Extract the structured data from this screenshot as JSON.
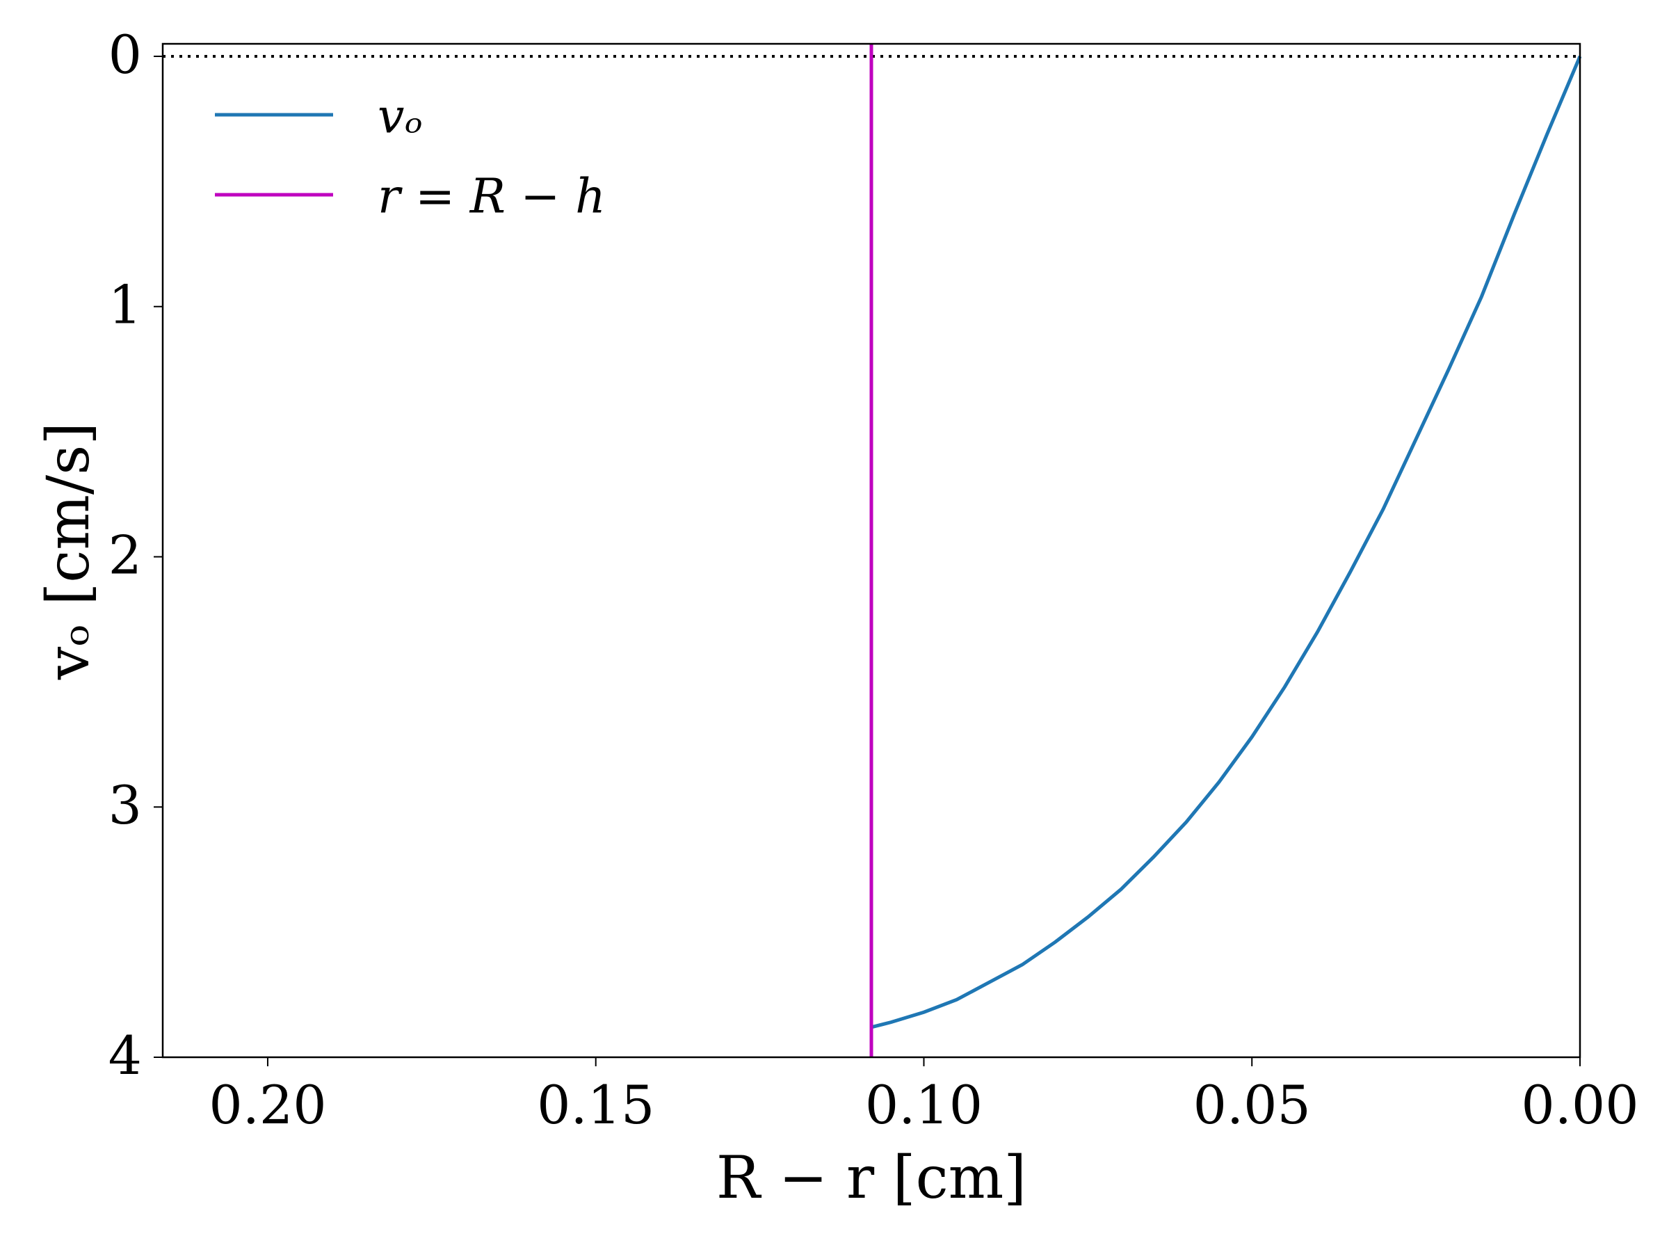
{
  "chart_data": {
    "type": "line",
    "xlabel": "R − r [cm]",
    "ylabel": "vₒ [cm/s]",
    "xlim": [
      0.216,
      0
    ],
    "ylim": [
      4,
      -0.05
    ],
    "xticks": [
      {
        "value": 0.2,
        "label": "0.20"
      },
      {
        "value": 0.15,
        "label": "0.15"
      },
      {
        "value": 0.1,
        "label": "0.10"
      },
      {
        "value": 0.05,
        "label": "0.05"
      },
      {
        "value": 0,
        "label": "0.00"
      }
    ],
    "yticks": [
      0,
      1,
      2,
      3,
      4
    ],
    "legend": "upper left",
    "series": [
      {
        "name": "vₒ",
        "color": "#1f77b4",
        "x": [
          0,
          0.005,
          0.01,
          0.015,
          0.02,
          0.025,
          0.03,
          0.035,
          0.04,
          0.045,
          0.05,
          0.055,
          0.06,
          0.065,
          0.07,
          0.075,
          0.08,
          0.085,
          0.09,
          0.095,
          0.1,
          0.105,
          0.108
        ],
        "values": [
          0,
          0.31,
          0.63,
          0.96,
          1.25,
          1.53,
          1.81,
          2.06,
          2.3,
          2.52,
          2.72,
          2.9,
          3.06,
          3.2,
          3.33,
          3.44,
          3.54,
          3.63,
          3.7,
          3.77,
          3.82,
          3.86,
          3.88
        ]
      }
    ],
    "vlines": [
      {
        "name": "r = R − h",
        "color": "#bf00bf",
        "x": 0.108
      }
    ],
    "hline": {
      "y": 0,
      "color": "#000000",
      "style": "dotted"
    }
  }
}
